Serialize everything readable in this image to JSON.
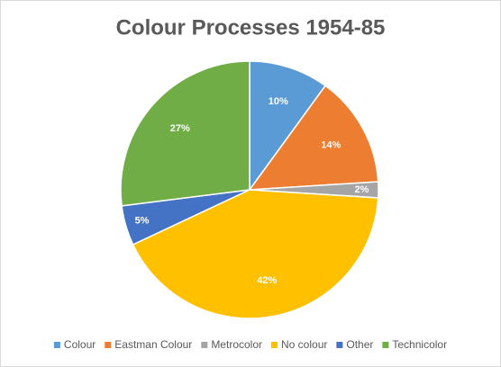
{
  "chart_data": {
    "type": "pie",
    "title": "Colour Processes 1954-85",
    "categories": [
      "Colour",
      "Eastman Colour",
      "Metrocolor",
      "No colour",
      "Other",
      "Technicolor"
    ],
    "values": [
      10,
      14,
      2,
      42,
      5,
      27
    ],
    "value_labels": [
      "10%",
      "14%",
      "2%",
      "42%",
      "5%",
      "27%"
    ],
    "colors": [
      "#5b9bd5",
      "#ed7d31",
      "#a5a5a5",
      "#ffc000",
      "#4472c4",
      "#70ad47"
    ],
    "legend": "bottom"
  }
}
